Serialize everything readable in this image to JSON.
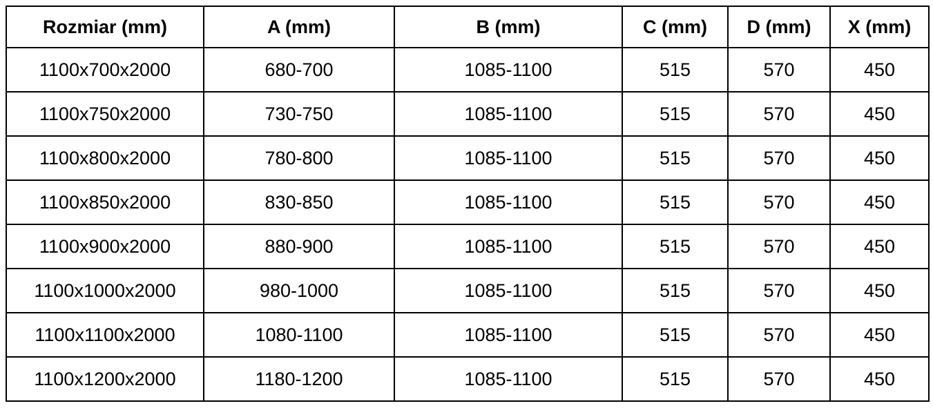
{
  "table": {
    "columns": [
      "Rozmiar (mm)",
      "A (mm)",
      "B (mm)",
      "C (mm)",
      "D (mm)",
      "X (mm)"
    ],
    "rows": [
      [
        "1100x700x2000",
        "680-700",
        "1085-1100",
        "515",
        "570",
        "450"
      ],
      [
        "1100x750x2000",
        "730-750",
        "1085-1100",
        "515",
        "570",
        "450"
      ],
      [
        "1100x800x2000",
        "780-800",
        "1085-1100",
        "515",
        "570",
        "450"
      ],
      [
        "1100x850x2000",
        "830-850",
        "1085-1100",
        "515",
        "570",
        "450"
      ],
      [
        "1100x900x2000",
        "880-900",
        "1085-1100",
        "515",
        "570",
        "450"
      ],
      [
        "1100x1000x2000",
        "980-1000",
        "1085-1100",
        "515",
        "570",
        "450"
      ],
      [
        "1100x1100x2000",
        "1080-1100",
        "1085-1100",
        "515",
        "570",
        "450"
      ],
      [
        "1100x1200x2000",
        "1180-1200",
        "1085-1100",
        "515",
        "570",
        "450"
      ]
    ],
    "colors": {
      "border": "#000000",
      "text": "#000000",
      "background": "#ffffff"
    }
  }
}
